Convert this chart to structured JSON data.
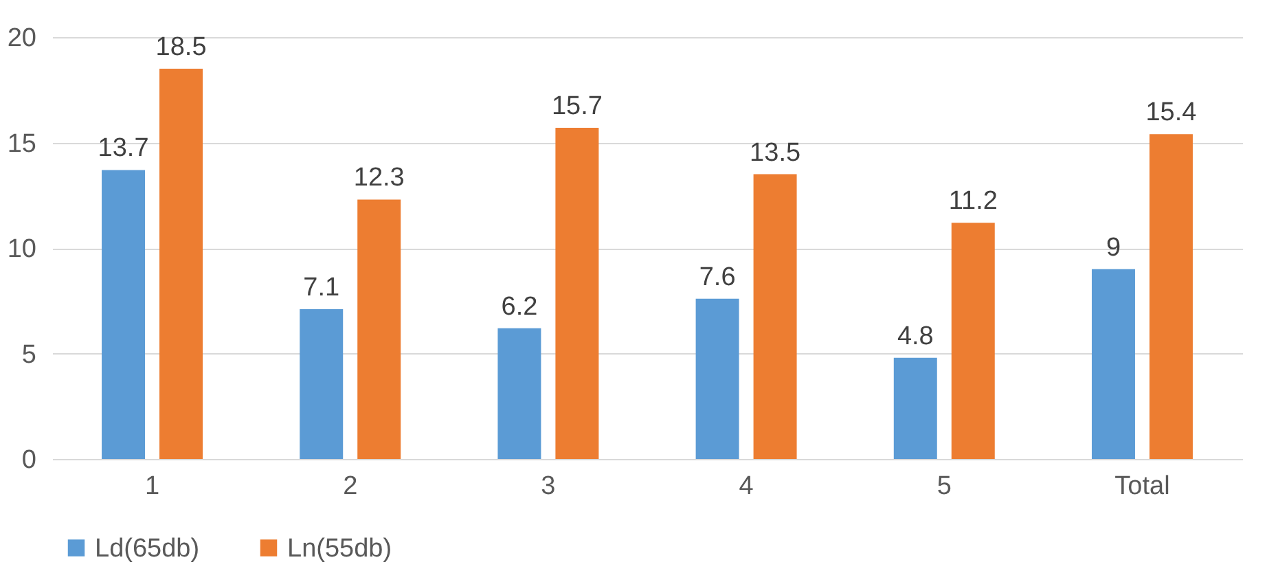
{
  "chart_data": {
    "type": "bar",
    "categories": [
      "1",
      "2",
      "3",
      "4",
      "5",
      "Total"
    ],
    "series": [
      {
        "name": "Ld(65db)",
        "color": "#5b9bd5",
        "values": [
          13.7,
          7.1,
          6.2,
          7.6,
          4.8,
          9
        ]
      },
      {
        "name": "Ln(55db)",
        "color": "#ed7d31",
        "values": [
          18.5,
          12.3,
          15.7,
          13.5,
          11.2,
          15.4
        ]
      }
    ],
    "ylim": [
      0,
      20
    ],
    "yticks": [
      0,
      5,
      10,
      15,
      20
    ],
    "grid": "y",
    "legend": "bottom",
    "data_labels": true
  }
}
